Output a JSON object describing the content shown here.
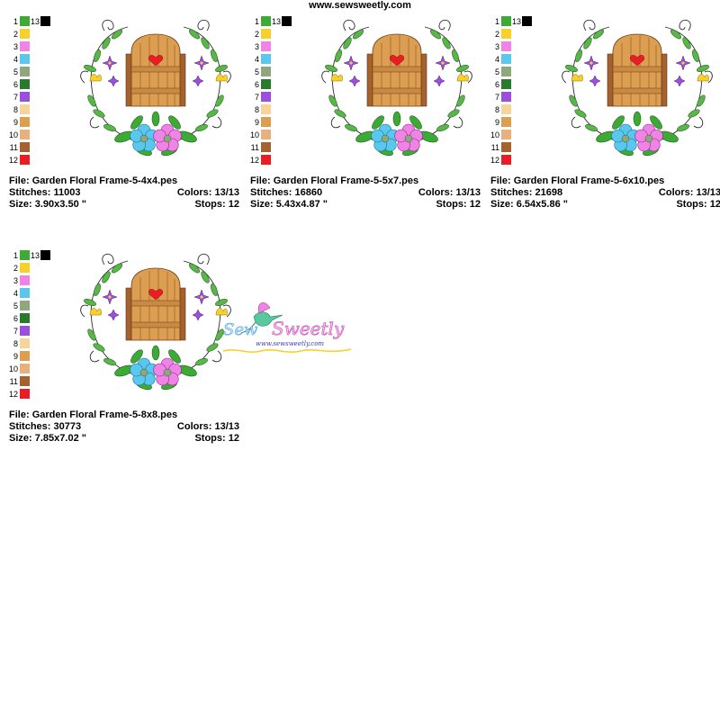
{
  "header": {
    "site": "www.sewsweetly.com"
  },
  "palette": [
    {
      "n": "1",
      "c": "#3daa36"
    },
    {
      "n": "2",
      "c": "#f7d02c"
    },
    {
      "n": "3",
      "c": "#ef83e6"
    },
    {
      "n": "4",
      "c": "#5ac8ee"
    },
    {
      "n": "5",
      "c": "#8ea77e"
    },
    {
      "n": "6",
      "c": "#2a7a2d"
    },
    {
      "n": "7",
      "c": "#9c4fdd"
    },
    {
      "n": "8",
      "c": "#f6d49c"
    },
    {
      "n": "9",
      "c": "#dc9f52"
    },
    {
      "n": "10",
      "c": "#e9b07e"
    },
    {
      "n": "11",
      "c": "#a5622f"
    },
    {
      "n": "12",
      "c": "#ec1c24"
    },
    {
      "n": "13",
      "c": "#000000"
    }
  ],
  "labels": {
    "file": "File:",
    "stitches": "Stitches:",
    "colors": "Colors:",
    "size": "Size:",
    "stops": "Stops:"
  },
  "designs": [
    {
      "file": "Garden Floral Frame-5-4x4.pes",
      "stitches": "11003",
      "colors": "13/13",
      "size": "3.90x3.50 \"",
      "stops": "12"
    },
    {
      "file": "Garden Floral Frame-5-5x7.pes",
      "stitches": "16860",
      "colors": "13/13",
      "size": "5.43x4.87 \"",
      "stops": "12"
    },
    {
      "file": "Garden Floral Frame-5-6x10.pes",
      "stitches": "21698",
      "colors": "13/13",
      "size": "6.54x5.86 \"",
      "stops": "12"
    },
    {
      "file": "Garden Floral Frame-5-8x8.pes",
      "stitches": "30773",
      "colors": "13/13",
      "size": "7.85x7.02 \"",
      "stops": "12"
    }
  ],
  "logo": {
    "brand": "Sew Sweetly",
    "url": "www.sewsweetly.com"
  }
}
